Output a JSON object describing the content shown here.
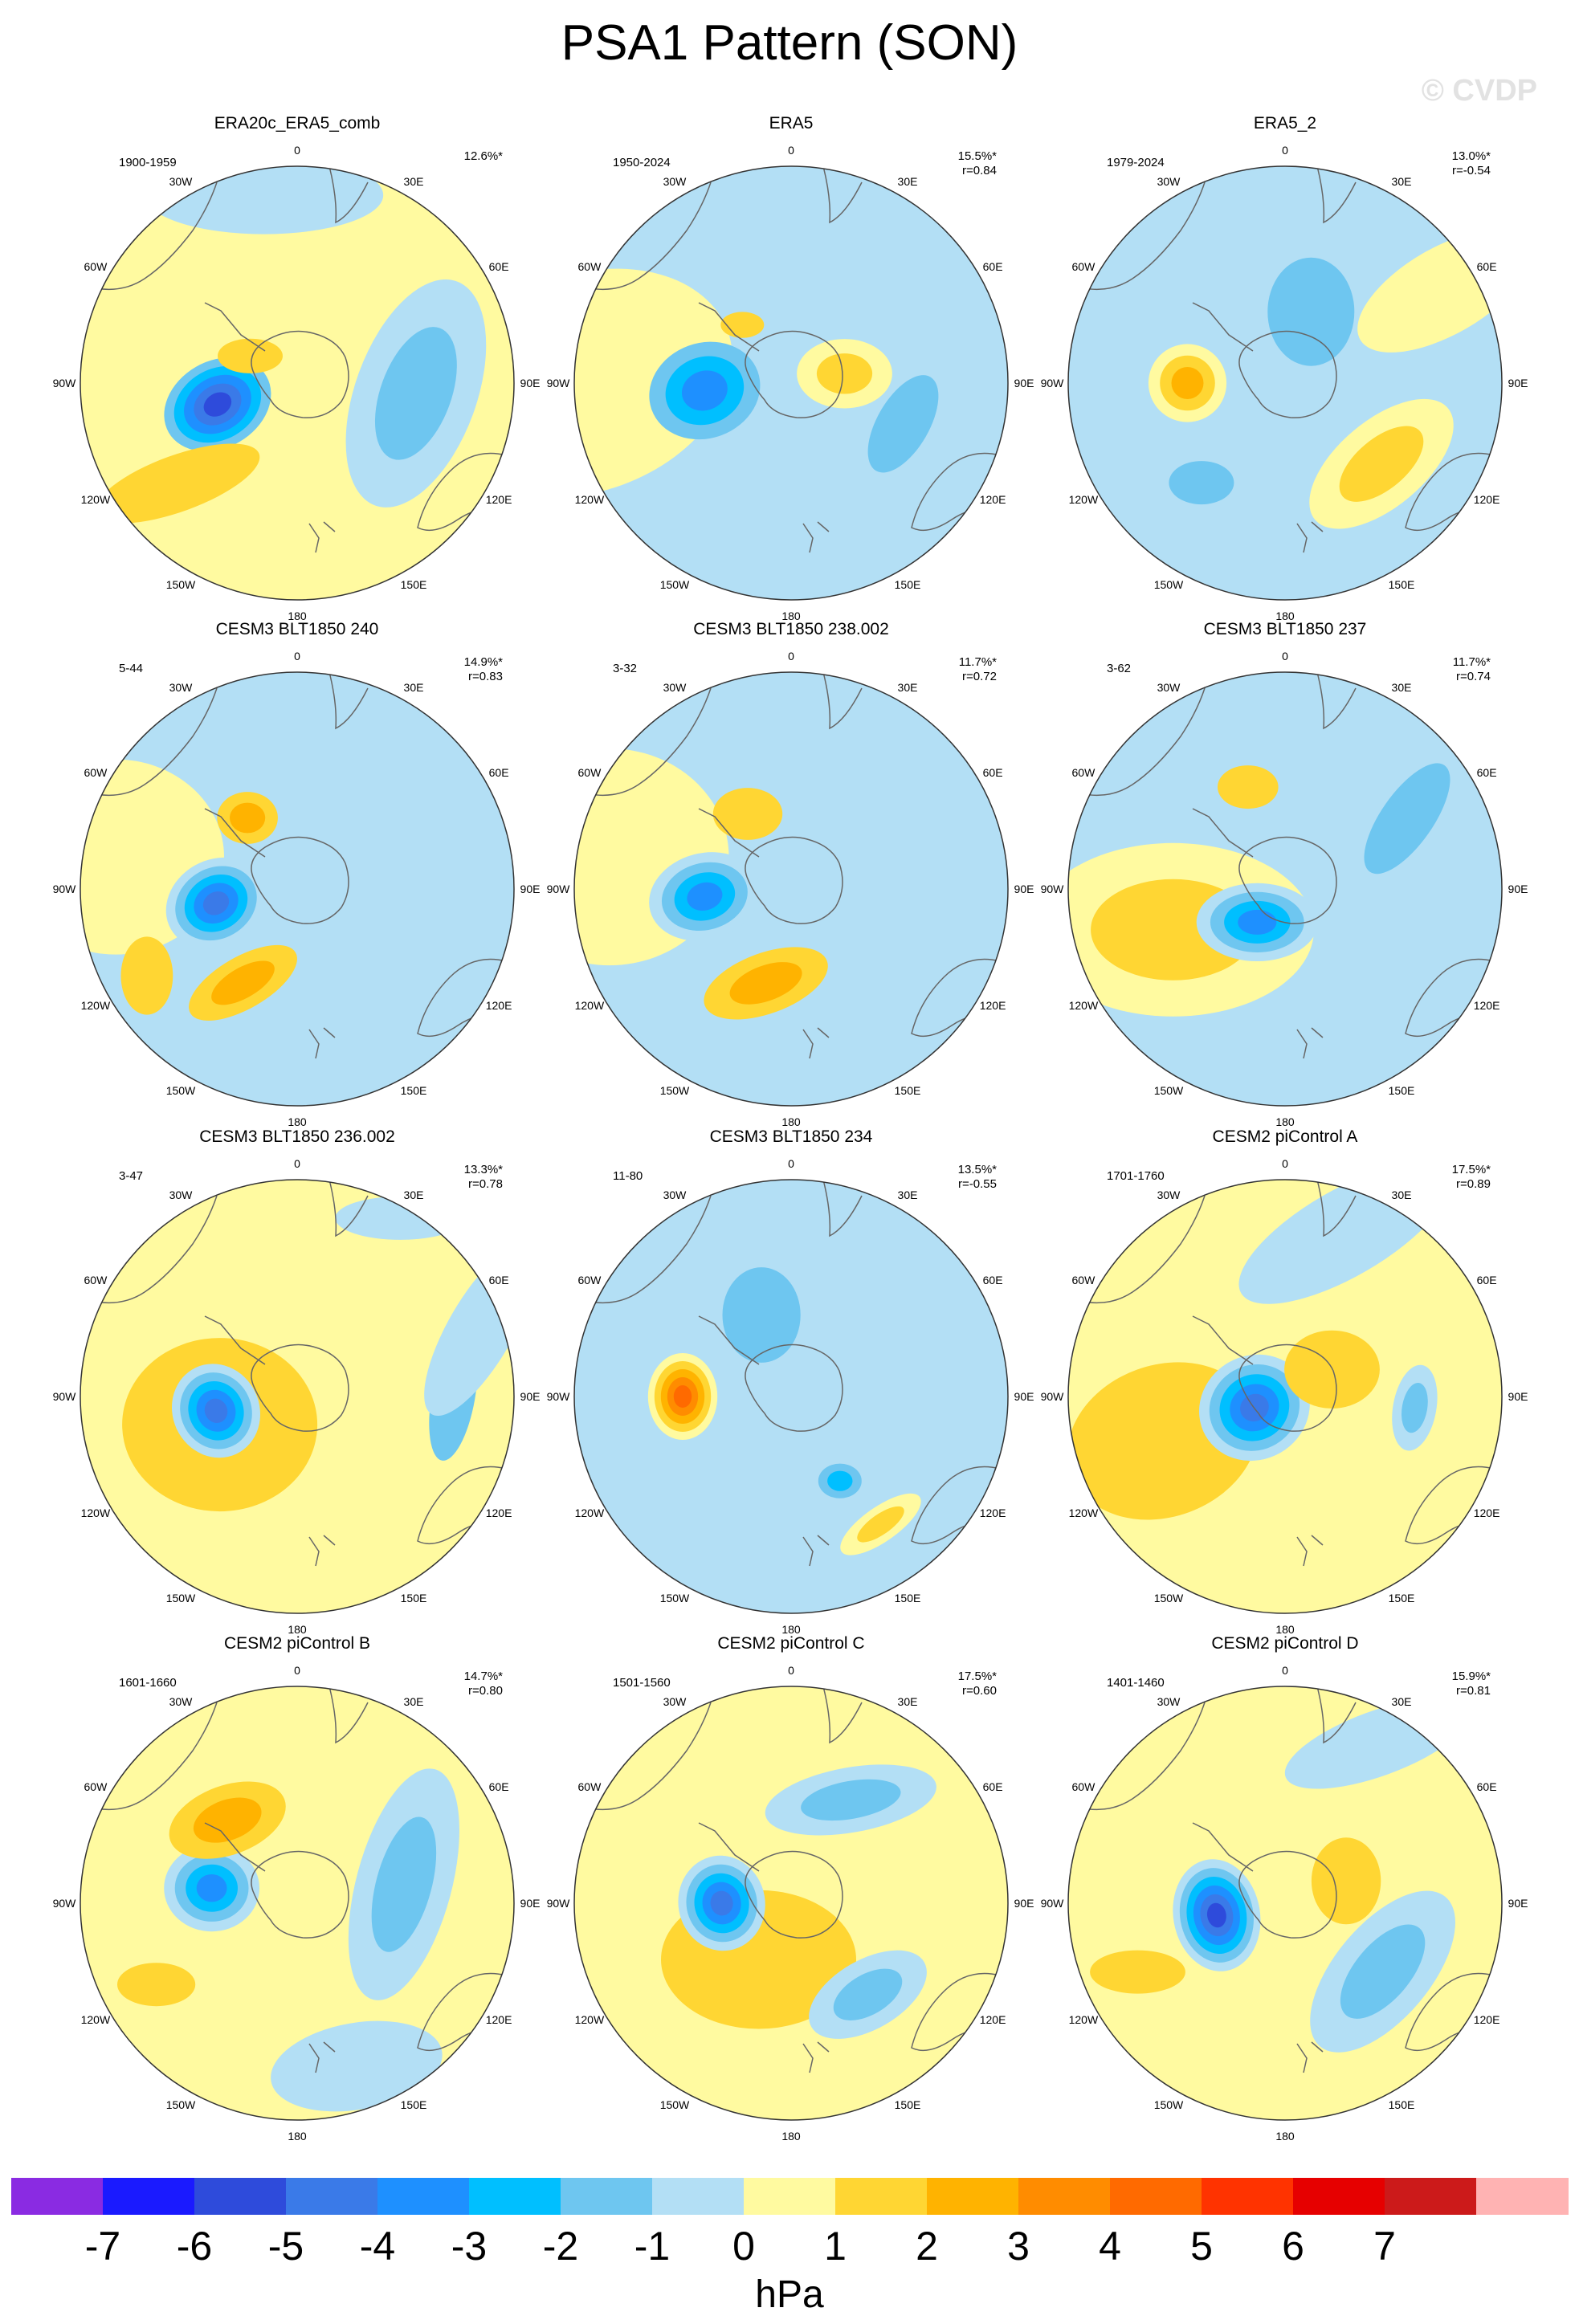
{
  "title": "PSA1 Pattern (SON)",
  "watermark": "© CVDP",
  "lon_labels": [
    "0",
    "30E",
    "60E",
    "90E",
    "120E",
    "150E",
    "180",
    "150W",
    "120W",
    "90W",
    "60W",
    "30W"
  ],
  "colors": {
    "c-7": "#8a2be2",
    "c-6": "#1a1aff",
    "c-5": "#2e4bdb",
    "c-4": "#3a7ae8",
    "c-3": "#1e90ff",
    "c-2": "#00bfff",
    "c-1": "#6ec6f0",
    "c0n": "#b3dff5",
    "c0p": "#fffaa0",
    "c1": "#ffd633",
    "c2": "#ffb300",
    "c3": "#ff8c00",
    "c4": "#ff6a00",
    "c5": "#ff3300",
    "c6": "#e60000",
    "c7": "#cc1a1a",
    "c8": "#ffb3b3"
  },
  "colorbar": {
    "colors": [
      "#8a2be2",
      "#1a1aff",
      "#2e4bdb",
      "#3a7ae8",
      "#1e90ff",
      "#00bfff",
      "#6ec6f0",
      "#b3dff5",
      "#fffaa0",
      "#ffd633",
      "#ffb300",
      "#ff8c00",
      "#ff6a00",
      "#ff3300",
      "#e60000",
      "#cc1a1a",
      "#ffb3b3"
    ],
    "ticks": [
      "-7",
      "-6",
      "-5",
      "-4",
      "-3",
      "-2",
      "-1",
      "0",
      "1",
      "2",
      "3",
      "4",
      "5",
      "6",
      "7"
    ],
    "unit": "hPa"
  },
  "panels": [
    {
      "title": "ERA20c_ERA5_comb",
      "period": "1900-1959",
      "pct": "12.6%*",
      "r": "",
      "bg": "yellow",
      "blobs": [
        {
          "lon": -105,
          "rad": 0.38,
          "rx": 0.26,
          "ry": 0.2,
          "rot": -30,
          "levels": [
            "c-1",
            "c-2",
            "c-3",
            "c-4",
            "c-5"
          ]
        },
        {
          "lon": -130,
          "rad": 0.72,
          "rx": 0.4,
          "ry": 0.13,
          "rot": -20,
          "levels": [
            "c1"
          ]
        },
        {
          "lon": -60,
          "rad": 0.25,
          "rx": 0.15,
          "ry": 0.08,
          "rot": 0,
          "levels": [
            "c1"
          ]
        },
        {
          "lon": 95,
          "rad": 0.55,
          "rx": 0.55,
          "ry": 0.28,
          "rot": -70,
          "levels": [
            "c0n",
            "c-1"
          ]
        },
        {
          "lon": -10,
          "rad": 0.88,
          "rx": 0.55,
          "ry": 0.18,
          "rot": 0,
          "levels": [
            "c0n"
          ]
        }
      ]
    },
    {
      "title": "ERA5",
      "period": "1950-2024",
      "pct": "15.5%*",
      "r": "r=0.84",
      "bg": "blue",
      "blobs": [
        {
          "lon": -90,
          "rad": 0.95,
          "rx": 0.7,
          "ry": 0.5,
          "rot": -20,
          "levels": [
            "c0p"
          ]
        },
        {
          "lon": -95,
          "rad": 0.4,
          "rx": 0.26,
          "ry": 0.22,
          "rot": -20,
          "levels": [
            "c-1",
            "c-2",
            "c-3"
          ]
        },
        {
          "lon": 80,
          "rad": 0.25,
          "rx": 0.22,
          "ry": 0.16,
          "rot": 0,
          "levels": [
            "c0p",
            "c1"
          ]
        },
        {
          "lon": 110,
          "rad": 0.55,
          "rx": 0.25,
          "ry": 0.12,
          "rot": -60,
          "levels": [
            "c-1"
          ]
        },
        {
          "lon": -40,
          "rad": 0.35,
          "rx": 0.1,
          "ry": 0.06,
          "rot": 0,
          "levels": [
            "c1"
          ]
        }
      ]
    },
    {
      "title": "ERA5_2",
      "period": "1979-2024",
      "pct": "13.0%*",
      "r": "r=-0.54",
      "bg": "blue",
      "blobs": [
        {
          "lon": -90,
          "rad": 0.45,
          "rx": 0.18,
          "ry": 0.18,
          "rot": 0,
          "levels": [
            "c0p",
            "c1",
            "c2"
          ]
        },
        {
          "lon": 130,
          "rad": 0.58,
          "rx": 0.4,
          "ry": 0.2,
          "rot": -40,
          "levels": [
            "c0p",
            "c1"
          ]
        },
        {
          "lon": 60,
          "rad": 0.85,
          "rx": 0.45,
          "ry": 0.2,
          "rot": -30,
          "levels": [
            "c0p"
          ]
        },
        {
          "lon": 20,
          "rad": 0.35,
          "rx": 0.2,
          "ry": 0.25,
          "rot": 0,
          "levels": [
            "c-1"
          ]
        },
        {
          "lon": -140,
          "rad": 0.6,
          "rx": 0.15,
          "ry": 0.1,
          "rot": 0,
          "levels": [
            "c-1"
          ]
        }
      ]
    },
    {
      "title": "CESM3 BLT1850 240",
      "period": "5-44",
      "pct": "14.9%*",
      "r": "r=0.83",
      "bg": "blue",
      "blobs": [
        {
          "lon": -80,
          "rad": 0.85,
          "rx": 0.5,
          "ry": 0.45,
          "rot": 0,
          "levels": [
            "c0p"
          ]
        },
        {
          "lon": -100,
          "rad": 0.38,
          "rx": 0.24,
          "ry": 0.2,
          "rot": -30,
          "levels": [
            "c0n",
            "c-1",
            "c-2",
            "c-3",
            "c-4"
          ]
        },
        {
          "lon": -150,
          "rad": 0.5,
          "rx": 0.28,
          "ry": 0.12,
          "rot": -30,
          "levels": [
            "c1",
            "c2"
          ]
        },
        {
          "lon": -120,
          "rad": 0.8,
          "rx": 0.12,
          "ry": 0.18,
          "rot": 0,
          "levels": [
            "c1"
          ]
        },
        {
          "lon": -35,
          "rad": 0.4,
          "rx": 0.14,
          "ry": 0.12,
          "rot": 0,
          "levels": [
            "c1",
            "c2"
          ]
        }
      ]
    },
    {
      "title": "CESM3 BLT1850 238.002",
      "period": "3-32",
      "pct": "11.7%*",
      "r": "r=0.72",
      "bg": "blue",
      "blobs": [
        {
          "lon": -80,
          "rad": 0.85,
          "rx": 0.55,
          "ry": 0.5,
          "rot": 0,
          "levels": [
            "c0p"
          ]
        },
        {
          "lon": -95,
          "rad": 0.4,
          "rx": 0.26,
          "ry": 0.2,
          "rot": -15,
          "levels": [
            "c0n",
            "c-1",
            "c-2",
            "c-3"
          ]
        },
        {
          "lon": -165,
          "rad": 0.45,
          "rx": 0.3,
          "ry": 0.14,
          "rot": -20,
          "levels": [
            "c1",
            "c2"
          ]
        },
        {
          "lon": -30,
          "rad": 0.4,
          "rx": 0.16,
          "ry": 0.12,
          "rot": 0,
          "levels": [
            "c1"
          ]
        }
      ]
    },
    {
      "title": "CESM3 BLT1850 237",
      "period": "3-62",
      "pct": "11.7%*",
      "r": "r=0.74",
      "bg": "blue",
      "blobs": [
        {
          "lon": -110,
          "rad": 0.55,
          "rx": 0.65,
          "ry": 0.4,
          "rot": 0,
          "levels": [
            "c0p",
            "c1"
          ]
        },
        {
          "lon": -140,
          "rad": 0.2,
          "rx": 0.28,
          "ry": 0.18,
          "rot": 0,
          "levels": [
            "c0n",
            "c-1",
            "c-2",
            "c-3"
          ]
        },
        {
          "lon": 60,
          "rad": 0.65,
          "rx": 0.3,
          "ry": 0.12,
          "rot": -55,
          "levels": [
            "c-1"
          ]
        },
        {
          "lon": -20,
          "rad": 0.5,
          "rx": 0.14,
          "ry": 0.1,
          "rot": 0,
          "levels": [
            "c1"
          ]
        }
      ]
    },
    {
      "title": "CESM3 BLT1850 236.002",
      "period": "3-47",
      "pct": "13.3%*",
      "r": "r=0.78",
      "bg": "yellow",
      "blobs": [
        {
          "lon": -110,
          "rad": 0.38,
          "rx": 0.45,
          "ry": 0.4,
          "rot": 0,
          "levels": [
            "c1"
          ]
        },
        {
          "lon": -100,
          "rad": 0.38,
          "rx": 0.2,
          "ry": 0.22,
          "rot": -25,
          "levels": [
            "c0n",
            "c-1",
            "c-2",
            "c-3",
            "c-4"
          ]
        },
        {
          "lon": 90,
          "rad": 0.72,
          "rx": 0.3,
          "ry": 0.1,
          "rot": -80,
          "levels": [
            "c-1"
          ]
        },
        {
          "lon": 70,
          "rad": 0.9,
          "rx": 0.45,
          "ry": 0.15,
          "rot": -60,
          "levels": [
            "c0n"
          ]
        },
        {
          "lon": 30,
          "rad": 0.95,
          "rx": 0.3,
          "ry": 0.1,
          "rot": 0,
          "levels": [
            "c0n"
          ]
        }
      ]
    },
    {
      "title": "CESM3 BLT1850 234",
      "period": "11-80",
      "pct": "13.5%*",
      "r": "r=-0.55",
      "bg": "blue",
      "blobs": [
        {
          "lon": -90,
          "rad": 0.5,
          "rx": 0.16,
          "ry": 0.2,
          "rot": 0,
          "levels": [
            "c0p",
            "c1",
            "c2",
            "c3",
            "c4"
          ]
        },
        {
          "lon": 150,
          "rad": 0.45,
          "rx": 0.1,
          "ry": 0.08,
          "rot": 0,
          "levels": [
            "c-1",
            "c-2"
          ]
        },
        {
          "lon": 145,
          "rad": 0.72,
          "rx": 0.22,
          "ry": 0.08,
          "rot": -35,
          "levels": [
            "c0p",
            "c1"
          ]
        },
        {
          "lon": -20,
          "rad": 0.4,
          "rx": 0.18,
          "ry": 0.22,
          "rot": 0,
          "levels": [
            "c-1"
          ]
        }
      ]
    },
    {
      "title": "CESM2 piControl A",
      "period": "1701-1760",
      "pct": "17.5%*",
      "r": "r=0.89",
      "bg": "yellow",
      "blobs": [
        {
          "lon": -110,
          "rad": 0.6,
          "rx": 0.45,
          "ry": 0.35,
          "rot": -20,
          "levels": [
            "c1"
          ]
        },
        {
          "lon": -110,
          "rad": 0.15,
          "rx": 0.26,
          "ry": 0.24,
          "rot": -30,
          "levels": [
            "c0n",
            "c-1",
            "c-2",
            "c-3",
            "c-4"
          ]
        },
        {
          "lon": 60,
          "rad": 0.25,
          "rx": 0.22,
          "ry": 0.18,
          "rot": 0,
          "levels": [
            "c1"
          ]
        },
        {
          "lon": 95,
          "rad": 0.6,
          "rx": 0.2,
          "ry": 0.1,
          "rot": -80,
          "levels": [
            "c0n",
            "c-1"
          ]
        },
        {
          "lon": 20,
          "rad": 0.8,
          "rx": 0.55,
          "ry": 0.2,
          "rot": -30,
          "levels": [
            "c0n"
          ]
        }
      ]
    },
    {
      "title": "CESM2 piControl B",
      "period": "1601-1660",
      "pct": "14.7%*",
      "r": "r=0.80",
      "bg": "yellow",
      "blobs": [
        {
          "lon": -80,
          "rad": 0.4,
          "rx": 0.22,
          "ry": 0.2,
          "rot": 0,
          "levels": [
            "c0n",
            "c-1",
            "c-2",
            "c-3"
          ]
        },
        {
          "lon": -40,
          "rad": 0.5,
          "rx": 0.28,
          "ry": 0.16,
          "rot": -20,
          "levels": [
            "c1",
            "c2"
          ]
        },
        {
          "lon": -120,
          "rad": 0.75,
          "rx": 0.18,
          "ry": 0.1,
          "rot": 0,
          "levels": [
            "c1"
          ]
        },
        {
          "lon": 80,
          "rad": 0.5,
          "rx": 0.55,
          "ry": 0.22,
          "rot": -75,
          "levels": [
            "c0n",
            "c-1"
          ]
        },
        {
          "lon": 160,
          "rad": 0.8,
          "rx": 0.4,
          "ry": 0.2,
          "rot": -10,
          "levels": [
            "c0n"
          ]
        }
      ]
    },
    {
      "title": "CESM2 piControl C",
      "period": "1501-1560",
      "pct": "17.5%*",
      "r": "r=0.60",
      "bg": "yellow",
      "blobs": [
        {
          "lon": -150,
          "rad": 0.3,
          "rx": 0.45,
          "ry": 0.32,
          "rot": 0,
          "levels": [
            "c1"
          ]
        },
        {
          "lon": -90,
          "rad": 0.32,
          "rx": 0.2,
          "ry": 0.22,
          "rot": -10,
          "levels": [
            "c0n",
            "c-1",
            "c-2",
            "c-3",
            "c-4"
          ]
        },
        {
          "lon": 140,
          "rad": 0.55,
          "rx": 0.3,
          "ry": 0.16,
          "rot": -30,
          "levels": [
            "c0n",
            "c-1"
          ]
        },
        {
          "lon": 30,
          "rad": 0.55,
          "rx": 0.4,
          "ry": 0.15,
          "rot": -10,
          "levels": [
            "c0n",
            "c-1"
          ]
        }
      ]
    },
    {
      "title": "CESM2 piControl D",
      "period": "1401-1460",
      "pct": "15.9%*",
      "r": "r=0.81",
      "bg": "yellow",
      "blobs": [
        {
          "lon": -100,
          "rad": 0.32,
          "rx": 0.2,
          "ry": 0.26,
          "rot": -10,
          "levels": [
            "c0n",
            "c-1",
            "c-2",
            "c-3",
            "c-4",
            "c-5"
          ]
        },
        {
          "lon": -115,
          "rad": 0.75,
          "rx": 0.22,
          "ry": 0.1,
          "rot": 0,
          "levels": [
            "c1"
          ]
        },
        {
          "lon": 70,
          "rad": 0.3,
          "rx": 0.16,
          "ry": 0.2,
          "rot": 0,
          "levels": [
            "c1"
          ]
        },
        {
          "lon": 125,
          "rad": 0.55,
          "rx": 0.45,
          "ry": 0.22,
          "rot": -50,
          "levels": [
            "c0n",
            "c-1"
          ]
        },
        {
          "lon": 30,
          "rad": 0.85,
          "rx": 0.45,
          "ry": 0.15,
          "rot": -20,
          "levels": [
            "c0n"
          ]
        }
      ]
    }
  ]
}
